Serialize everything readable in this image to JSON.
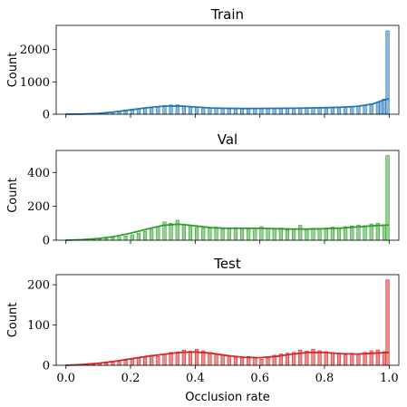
{
  "chart_data": [
    {
      "type": "histogram",
      "title": "Train",
      "xlabel": "",
      "ylabel": "Count",
      "xlim": [
        -0.03,
        1.03
      ],
      "ylim": [
        0,
        2750
      ],
      "yticks": [
        0,
        1000,
        2000
      ],
      "xticks": [
        0.0,
        0.2,
        0.4,
        0.6,
        0.8,
        1.0
      ],
      "xtick_labels": [],
      "color": "#1f77b4",
      "fill": "#8bb8dc",
      "bin_width": 0.01,
      "bins": [
        [
          0.0,
          3
        ],
        [
          0.02,
          5
        ],
        [
          0.04,
          8
        ],
        [
          0.06,
          12
        ],
        [
          0.08,
          20
        ],
        [
          0.1,
          30
        ],
        [
          0.12,
          45
        ],
        [
          0.14,
          60
        ],
        [
          0.16,
          80
        ],
        [
          0.18,
          100
        ],
        [
          0.2,
          125
        ],
        [
          0.22,
          150
        ],
        [
          0.24,
          175
        ],
        [
          0.26,
          200
        ],
        [
          0.28,
          220
        ],
        [
          0.3,
          270
        ],
        [
          0.32,
          290
        ],
        [
          0.34,
          290
        ],
        [
          0.36,
          260
        ],
        [
          0.38,
          240
        ],
        [
          0.4,
          220
        ],
        [
          0.42,
          205
        ],
        [
          0.44,
          195
        ],
        [
          0.46,
          190
        ],
        [
          0.48,
          185
        ],
        [
          0.5,
          180
        ],
        [
          0.52,
          180
        ],
        [
          0.54,
          175
        ],
        [
          0.56,
          178
        ],
        [
          0.58,
          180
        ],
        [
          0.6,
          182
        ],
        [
          0.62,
          185
        ],
        [
          0.64,
          180
        ],
        [
          0.66,
          182
        ],
        [
          0.68,
          185
        ],
        [
          0.7,
          190
        ],
        [
          0.72,
          190
        ],
        [
          0.74,
          195
        ],
        [
          0.76,
          198
        ],
        [
          0.78,
          200
        ],
        [
          0.8,
          205
        ],
        [
          0.82,
          210
        ],
        [
          0.84,
          215
        ],
        [
          0.86,
          220
        ],
        [
          0.88,
          230
        ],
        [
          0.9,
          245
        ],
        [
          0.92,
          265
        ],
        [
          0.94,
          300
        ],
        [
          0.96,
          360
        ],
        [
          0.97,
          410
        ],
        [
          0.98,
          470
        ],
        [
          0.99,
          2580
        ]
      ],
      "kde": [
        [
          0.0,
          0
        ],
        [
          0.05,
          5
        ],
        [
          0.1,
          25
        ],
        [
          0.15,
          70
        ],
        [
          0.2,
          135
        ],
        [
          0.25,
          200
        ],
        [
          0.3,
          250
        ],
        [
          0.35,
          255
        ],
        [
          0.4,
          225
        ],
        [
          0.45,
          195
        ],
        [
          0.5,
          182
        ],
        [
          0.55,
          178
        ],
        [
          0.6,
          180
        ],
        [
          0.65,
          182
        ],
        [
          0.7,
          186
        ],
        [
          0.75,
          193
        ],
        [
          0.8,
          202
        ],
        [
          0.85,
          215
        ],
        [
          0.9,
          240
        ],
        [
          0.95,
          320
        ],
        [
          0.98,
          430
        ],
        [
          1.0,
          480
        ]
      ]
    },
    {
      "type": "histogram",
      "title": "Val",
      "xlabel": "",
      "ylabel": "Count",
      "xlim": [
        -0.03,
        1.03
      ],
      "ylim": [
        0,
        530
      ],
      "yticks": [
        0,
        200,
        400
      ],
      "xticks": [
        0.0,
        0.2,
        0.4,
        0.6,
        0.8,
        1.0
      ],
      "xtick_labels": [],
      "color": "#2ca02c",
      "fill": "#96d191",
      "bin_width": 0.01,
      "bins": [
        [
          0.0,
          4
        ],
        [
          0.02,
          2
        ],
        [
          0.04,
          3
        ],
        [
          0.06,
          4
        ],
        [
          0.08,
          5
        ],
        [
          0.1,
          7
        ],
        [
          0.12,
          9
        ],
        [
          0.14,
          14
        ],
        [
          0.16,
          18
        ],
        [
          0.18,
          25
        ],
        [
          0.2,
          32
        ],
        [
          0.22,
          42
        ],
        [
          0.24,
          52
        ],
        [
          0.26,
          64
        ],
        [
          0.28,
          80
        ],
        [
          0.3,
          108
        ],
        [
          0.32,
          100
        ],
        [
          0.34,
          118
        ],
        [
          0.36,
          95
        ],
        [
          0.38,
          88
        ],
        [
          0.4,
          76
        ],
        [
          0.42,
          72
        ],
        [
          0.44,
          70
        ],
        [
          0.46,
          78
        ],
        [
          0.48,
          65
        ],
        [
          0.5,
          70
        ],
        [
          0.52,
          75
        ],
        [
          0.54,
          72
        ],
        [
          0.56,
          68
        ],
        [
          0.58,
          74
        ],
        [
          0.6,
          80
        ],
        [
          0.62,
          70
        ],
        [
          0.64,
          66
        ],
        [
          0.66,
          72
        ],
        [
          0.68,
          60
        ],
        [
          0.7,
          68
        ],
        [
          0.72,
          88
        ],
        [
          0.74,
          62
        ],
        [
          0.76,
          70
        ],
        [
          0.78,
          66
        ],
        [
          0.8,
          72
        ],
        [
          0.82,
          78
        ],
        [
          0.84,
          74
        ],
        [
          0.86,
          80
        ],
        [
          0.88,
          84
        ],
        [
          0.9,
          90
        ],
        [
          0.92,
          86
        ],
        [
          0.94,
          96
        ],
        [
          0.96,
          100
        ],
        [
          0.98,
          90
        ],
        [
          0.99,
          500
        ]
      ],
      "kde": [
        [
          0.0,
          0
        ],
        [
          0.05,
          3
        ],
        [
          0.1,
          10
        ],
        [
          0.15,
          22
        ],
        [
          0.2,
          42
        ],
        [
          0.25,
          65
        ],
        [
          0.3,
          88
        ],
        [
          0.35,
          95
        ],
        [
          0.4,
          85
        ],
        [
          0.45,
          74
        ],
        [
          0.5,
          70
        ],
        [
          0.55,
          70
        ],
        [
          0.6,
          70
        ],
        [
          0.65,
          68
        ],
        [
          0.7,
          66
        ],
        [
          0.75,
          66
        ],
        [
          0.8,
          68
        ],
        [
          0.85,
          72
        ],
        [
          0.9,
          78
        ],
        [
          0.95,
          85
        ],
        [
          1.0,
          90
        ]
      ]
    },
    {
      "type": "histogram",
      "title": "Test",
      "xlabel": "Occlusion rate",
      "ylabel": "Count",
      "xlim": [
        -0.03,
        1.03
      ],
      "ylim": [
        0,
        225
      ],
      "yticks": [
        0,
        100,
        200
      ],
      "xticks": [
        0.0,
        0.2,
        0.4,
        0.6,
        0.8,
        1.0
      ],
      "xtick_labels": [
        "0.0",
        "0.2",
        "0.4",
        "0.6",
        "0.8",
        "1.0"
      ],
      "color": "#d62728",
      "fill": "#ec8c8c",
      "bin_width": 0.01,
      "bins": [
        [
          0.0,
          1
        ],
        [
          0.02,
          0
        ],
        [
          0.04,
          1
        ],
        [
          0.06,
          2
        ],
        [
          0.08,
          2
        ],
        [
          0.1,
          4
        ],
        [
          0.12,
          5
        ],
        [
          0.14,
          8
        ],
        [
          0.16,
          10
        ],
        [
          0.18,
          12
        ],
        [
          0.2,
          15
        ],
        [
          0.22,
          18
        ],
        [
          0.24,
          20
        ],
        [
          0.26,
          25
        ],
        [
          0.28,
          22
        ],
        [
          0.3,
          28
        ],
        [
          0.32,
          32
        ],
        [
          0.34,
          30
        ],
        [
          0.36,
          38
        ],
        [
          0.38,
          35
        ],
        [
          0.4,
          40
        ],
        [
          0.42,
          36
        ],
        [
          0.44,
          32
        ],
        [
          0.46,
          28
        ],
        [
          0.48,
          25
        ],
        [
          0.5,
          22
        ],
        [
          0.52,
          20
        ],
        [
          0.54,
          18
        ],
        [
          0.56,
          22
        ],
        [
          0.58,
          20
        ],
        [
          0.6,
          15
        ],
        [
          0.62,
          18
        ],
        [
          0.64,
          25
        ],
        [
          0.66,
          28
        ],
        [
          0.68,
          30
        ],
        [
          0.7,
          32
        ],
        [
          0.72,
          38
        ],
        [
          0.74,
          35
        ],
        [
          0.76,
          40
        ],
        [
          0.78,
          36
        ],
        [
          0.8,
          34
        ],
        [
          0.82,
          30
        ],
        [
          0.84,
          28
        ],
        [
          0.86,
          26
        ],
        [
          0.88,
          30
        ],
        [
          0.9,
          28
        ],
        [
          0.92,
          32
        ],
        [
          0.94,
          36
        ],
        [
          0.96,
          38
        ],
        [
          0.98,
          34
        ],
        [
          0.99,
          212
        ]
      ],
      "kde": [
        [
          0.0,
          0
        ],
        [
          0.05,
          2
        ],
        [
          0.1,
          5
        ],
        [
          0.15,
          10
        ],
        [
          0.2,
          16
        ],
        [
          0.25,
          22
        ],
        [
          0.3,
          27
        ],
        [
          0.35,
          32
        ],
        [
          0.4,
          33
        ],
        [
          0.45,
          30
        ],
        [
          0.5,
          24
        ],
        [
          0.55,
          20
        ],
        [
          0.6,
          19
        ],
        [
          0.65,
          22
        ],
        [
          0.7,
          28
        ],
        [
          0.75,
          32
        ],
        [
          0.8,
          32
        ],
        [
          0.85,
          29
        ],
        [
          0.9,
          28
        ],
        [
          0.95,
          30
        ],
        [
          1.0,
          32
        ]
      ]
    }
  ]
}
